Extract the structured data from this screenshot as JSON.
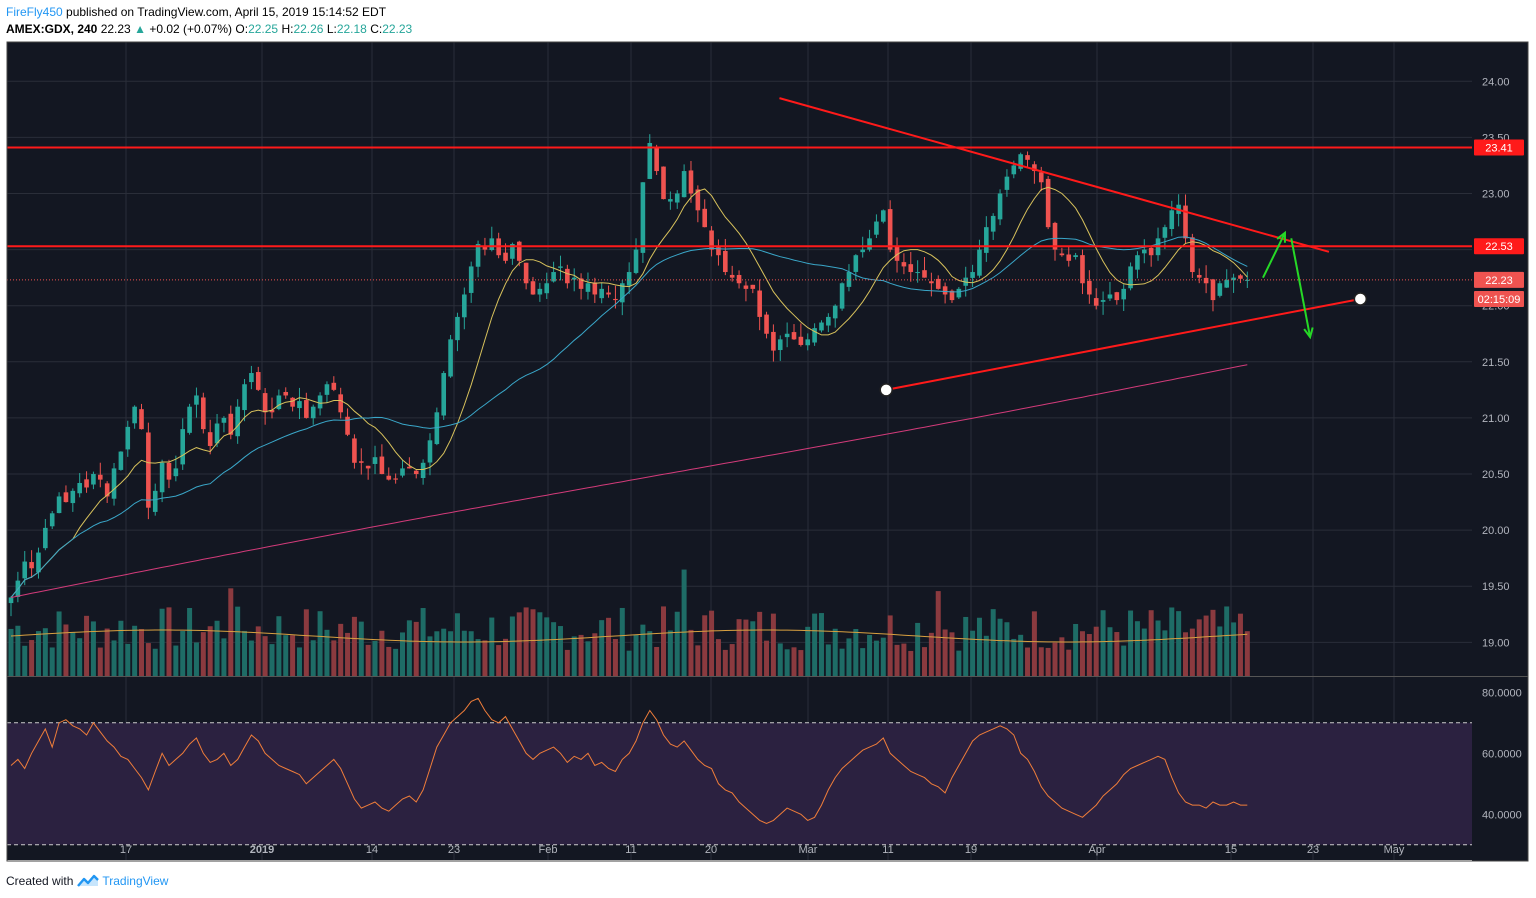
{
  "header": {
    "author": "FireFly450",
    "published": "published on TradingView.com, April 15, 2019 15:14:52 EDT",
    "symbol": "AMEX:GDX, 240",
    "last": "22.23",
    "change_arrow": "▲",
    "change": "+0.02 (+0.07%)",
    "o_label": "O:",
    "o_value": "22.25",
    "h_label": "H:",
    "h_value": "22.26",
    "l_label": "L:",
    "l_value": "22.18",
    "c_label": "C:",
    "c_value": "22.23"
  },
  "footer": {
    "created_with": "Created with",
    "brand": "TradingView",
    "logo_icon": "tradingview-logo-icon"
  },
  "colors": {
    "background": "#131722",
    "grid": "#2a2e39",
    "up_candle": "#26a69a",
    "down_candle": "#ef5350",
    "up_volume": "#1e6c66",
    "down_volume": "#8b3a3f",
    "ma_fast": "#d8c25c",
    "ma_mid": "#3aa7c9",
    "ma_slow": "#d33b7a",
    "volume_ma": "#d8a040",
    "trendline": "#ff1a1a",
    "arrows": "#26d926",
    "rsi_line": "#ef7d3a",
    "rsi_band": "#2b2140",
    "axis_text": "#b2b5be"
  },
  "chart_data": [
    {
      "type": "candlestick",
      "title": "",
      "xlabel": "",
      "ylabel": "",
      "ylim": [
        18.7,
        24.35
      ],
      "y_ticks": [
        "24.00",
        "23.50",
        "23.00",
        "22.50",
        "22.00",
        "21.50",
        "21.00",
        "20.50",
        "20.00",
        "19.50",
        "19.00"
      ],
      "x_ticks": [
        "17",
        "2019",
        "14",
        "23",
        "Feb",
        "11",
        "20",
        "Mar",
        "11",
        "19",
        "Apr",
        "15",
        "23",
        "May"
      ],
      "price_labels": [
        {
          "text": "23.41",
          "value": 23.41,
          "kind": "level"
        },
        {
          "text": "22.53",
          "value": 22.53,
          "kind": "level"
        },
        {
          "text": "22.23",
          "value": 22.23,
          "kind": "last"
        },
        {
          "text": "02:15:09",
          "value": 22.06,
          "kind": "countdown"
        }
      ],
      "horizontal_levels": [
        23.41,
        22.53
      ],
      "last_price": 22.23,
      "bar_count": 200,
      "closes": [
        19.4,
        19.55,
        19.72,
        19.66,
        19.8,
        20.02,
        20.15,
        20.3,
        20.25,
        20.35,
        20.42,
        20.38,
        20.5,
        20.45,
        20.3,
        20.55,
        20.7,
        20.92,
        21.1,
        20.9,
        20.2,
        20.35,
        20.6,
        20.45,
        20.55,
        20.9,
        21.1,
        21.2,
        20.9,
        20.75,
        20.95,
        21.0,
        20.85,
        21.1,
        21.3,
        21.4,
        21.25,
        21.05,
        21.05,
        21.2,
        21.2,
        21.1,
        21.15,
        21.0,
        21.1,
        21.2,
        21.3,
        21.25,
        21.05,
        20.85,
        20.6,
        20.6,
        20.55,
        20.65,
        20.5,
        20.45,
        20.45,
        20.55,
        20.55,
        20.5,
        20.6,
        20.8,
        21.05,
        21.4,
        21.7,
        21.9,
        22.1,
        22.35,
        22.55,
        22.5,
        22.6,
        22.45,
        22.4,
        22.55,
        22.4,
        22.2,
        22.1,
        22.15,
        22.2,
        22.3,
        22.35,
        22.2,
        22.25,
        22.15,
        22.2,
        22.1,
        22.15,
        22.1,
        22.05,
        22.2,
        22.3,
        22.5,
        23.1,
        23.45,
        23.2,
        22.95,
        22.95,
        23.0,
        23.2,
        23.0,
        22.85,
        22.7,
        22.5,
        22.45,
        22.3,
        22.25,
        22.2,
        22.15,
        22.15,
        21.9,
        21.75,
        21.6,
        21.7,
        21.75,
        21.7,
        21.65,
        21.7,
        21.8,
        21.85,
        21.9,
        22.0,
        22.2,
        22.3,
        22.45,
        22.5,
        22.6,
        22.75,
        22.85,
        22.5,
        22.4,
        22.35,
        22.3,
        22.3,
        22.25,
        22.2,
        22.15,
        22.1,
        22.05,
        22.15,
        22.25,
        22.3,
        22.5,
        22.7,
        22.8,
        23.0,
        23.15,
        23.25,
        23.35,
        23.3,
        23.2,
        23.1,
        22.7,
        22.5,
        22.45,
        22.4,
        22.45,
        22.2,
        22.1,
        22.0,
        22.05,
        22.1,
        22.05,
        22.15,
        22.35,
        22.45,
        22.5,
        22.45,
        22.6,
        22.7,
        22.85,
        22.9,
        22.6,
        22.3,
        22.25,
        22.2,
        22.05,
        22.2,
        22.23,
        22.25,
        22.24,
        22.23,
        22.22,
        22.23,
        22.23,
        22.22,
        22.23,
        22.23,
        22.24,
        22.23,
        22.23,
        22.22,
        22.23,
        22.23,
        22.23,
        22.24,
        22.23,
        22.23,
        22.23
      ],
      "trendlines": [
        {
          "name": "",
          "from": [
            14.0,
            21.25
          ],
          "to": [
            21.55,
            22.06
          ],
          "anchors": true
        },
        {
          "name": "",
          "from": [
            14.0,
            22.05
          ],
          "to": [
            21.55,
            22.06
          ],
          "anchors": false
        },
        {
          "name": "",
          "from": [
            12.3,
            23.85
          ],
          "to": [
            21.05,
            22.48
          ],
          "anchors": false
        }
      ],
      "projection_arrows": [
        {
          "from": [
            20.0,
            22.25
          ],
          "to": [
            20.35,
            22.65
          ]
        },
        {
          "from": [
            20.45,
            22.6
          ],
          "to": [
            20.75,
            21.72
          ]
        }
      ]
    },
    {
      "type": "line",
      "title": "",
      "ylim": [
        25,
        85
      ],
      "y_ticks": [
        "80.0000",
        "60.0000",
        "40.0000"
      ],
      "bands": [
        70,
        30
      ],
      "rsi_values": [
        56,
        58,
        55,
        60,
        64,
        68,
        62,
        70,
        71,
        69,
        68,
        66,
        70,
        67,
        64,
        62,
        59,
        58,
        55,
        52,
        48,
        54,
        60,
        56,
        58,
        60,
        63,
        65,
        60,
        57,
        58,
        60,
        56,
        58,
        62,
        66,
        64,
        60,
        58,
        56,
        55,
        54,
        53,
        50,
        52,
        54,
        56,
        58,
        55,
        50,
        45,
        42,
        43,
        44,
        42,
        41,
        43,
        45,
        46,
        44,
        48,
        55,
        62,
        66,
        70,
        72,
        74,
        77,
        78,
        74,
        71,
        70,
        72,
        68,
        64,
        60,
        58,
        60,
        61,
        62,
        60,
        57,
        59,
        58,
        60,
        56,
        57,
        55,
        54,
        58,
        60,
        64,
        70,
        74,
        71,
        66,
        63,
        62,
        64,
        61,
        58,
        56,
        55,
        50,
        48,
        47,
        44,
        42,
        40,
        38,
        37,
        38,
        40,
        42,
        41,
        40,
        38,
        39,
        43,
        48,
        52,
        55,
        57,
        59,
        61,
        62,
        63,
        65,
        60,
        58,
        56,
        54,
        53,
        52,
        50,
        49,
        47,
        52,
        56,
        60,
        64,
        66,
        67,
        68,
        69,
        68,
        66,
        60,
        58,
        54,
        49,
        46,
        44,
        42,
        41,
        40,
        39,
        41,
        43,
        46,
        48,
        50,
        53,
        55,
        56,
        57,
        58,
        59,
        58,
        52,
        47,
        44,
        43,
        43,
        42,
        44,
        43,
        43,
        44,
        43,
        43,
        42,
        43,
        43,
        42,
        43,
        43,
        42,
        43,
        43,
        42,
        43,
        43,
        43,
        42,
        43,
        43,
        43,
        43,
        43,
        43
      ]
    }
  ]
}
